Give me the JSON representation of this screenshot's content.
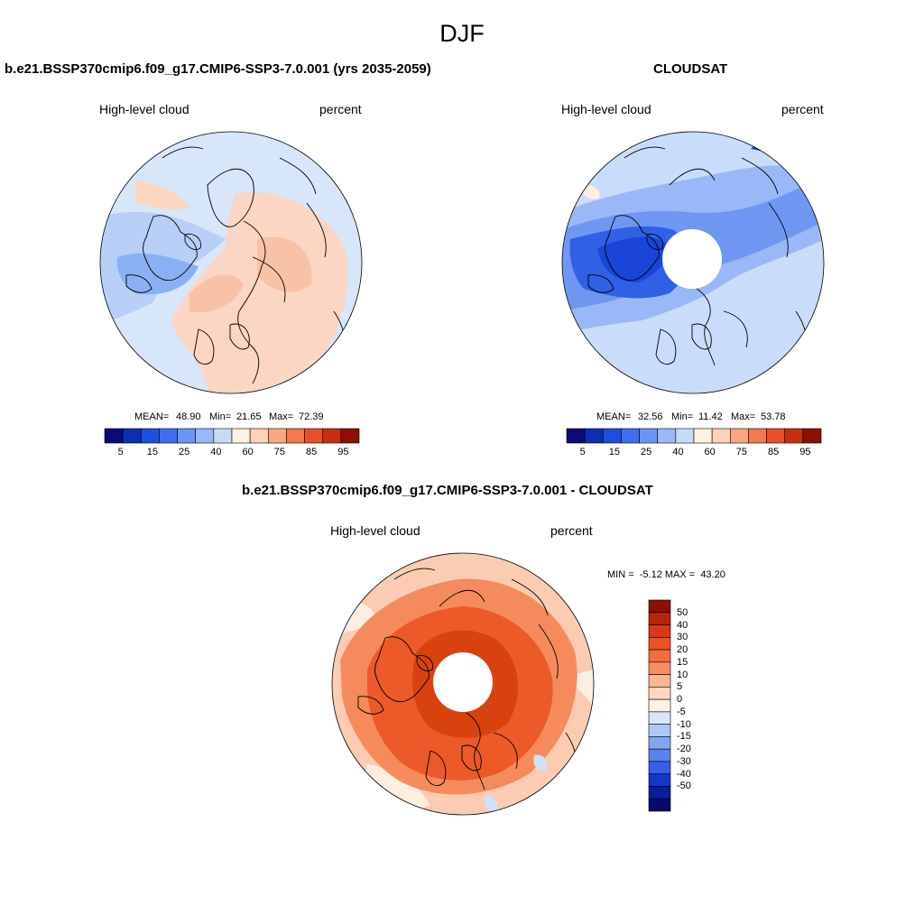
{
  "figure": {
    "title": "DJF"
  },
  "panels": [
    {
      "id": "model",
      "title": "b.e21.BSSP370cmip6.f09_g17.CMIP6-SSP3-7.0.001 (yrs 2035-2059)",
      "left_label": "High-level cloud",
      "right_label": "percent",
      "stats": {
        "mean_label": "MEAN=",
        "mean": "48.90",
        "min_label": "Min=",
        "min": "21.65",
        "max_label": "Max=",
        "max": "72.39"
      }
    },
    {
      "id": "obs",
      "title": "CLOUDSAT",
      "left_label": "High-level cloud",
      "right_label": "percent",
      "stats": {
        "mean_label": "MEAN=",
        "mean": "32.56",
        "min_label": "Min=",
        "min": "11.42",
        "max_label": "Max=",
        "max": "53.78"
      }
    },
    {
      "id": "diff",
      "title": "b.e21.BSSP370cmip6.f09_g17.CMIP6-SSP3-7.0.001 - CLOUDSAT",
      "left_label": "High-level cloud",
      "right_label": "percent",
      "stats_text": "MIN =  -5.12 MAX =  43.20"
    }
  ],
  "colorbar_field": {
    "tick_labels": [
      "5",
      "15",
      "25",
      "40",
      "60",
      "75",
      "85",
      "95"
    ],
    "colors": [
      "#0a0a78",
      "#0b2fb0",
      "#1c4fe0",
      "#3f6ef2",
      "#6a95f5",
      "#9ab8f7",
      "#c7dbf8",
      "#fdf1e6",
      "#fcd2b8",
      "#f8a880",
      "#f47a4c",
      "#e9502a",
      "#c72e10",
      "#8e0f04"
    ]
  },
  "colorbar_diff": {
    "tick_labels": [
      "50",
      "40",
      "30",
      "20",
      "15",
      "10",
      "5",
      "0",
      "-5",
      "-10",
      "-15",
      "-20",
      "-30",
      "-40",
      "-50"
    ],
    "colors": [
      "#8e0f04",
      "#b8240a",
      "#d83a14",
      "#ec5224",
      "#f06d3e",
      "#f58f62",
      "#f9b690",
      "#fcd8c0",
      "#fdf1e6",
      "#d8e6fa",
      "#adc8f7",
      "#83a6f3",
      "#5b82ee",
      "#3560e6",
      "#1636c6",
      "#0a1e9a",
      "#050a6c"
    ]
  },
  "map_colors": {
    "model_bg": "#d8e6fa",
    "model_light_blue": "#b8cff8",
    "model_mid_blue": "#8ab0f4",
    "model_salmon": "#fbd6c2",
    "model_salmon_dark": "#f8c2a6",
    "obs_bg": "#c9dcf9",
    "obs_mid": "#6f97f2",
    "obs_dark": "#2f60e6",
    "obs_darkest": "#1a45d8",
    "obs_cream": "#fdeee2",
    "diff_bg": "#fbcbb2",
    "diff_mid": "#f58b5c",
    "diff_dark": "#ec5a2a",
    "diff_darker": "#d8420f",
    "diff_cream": "#fdeee2",
    "diff_blue": "#cfe0f9"
  }
}
